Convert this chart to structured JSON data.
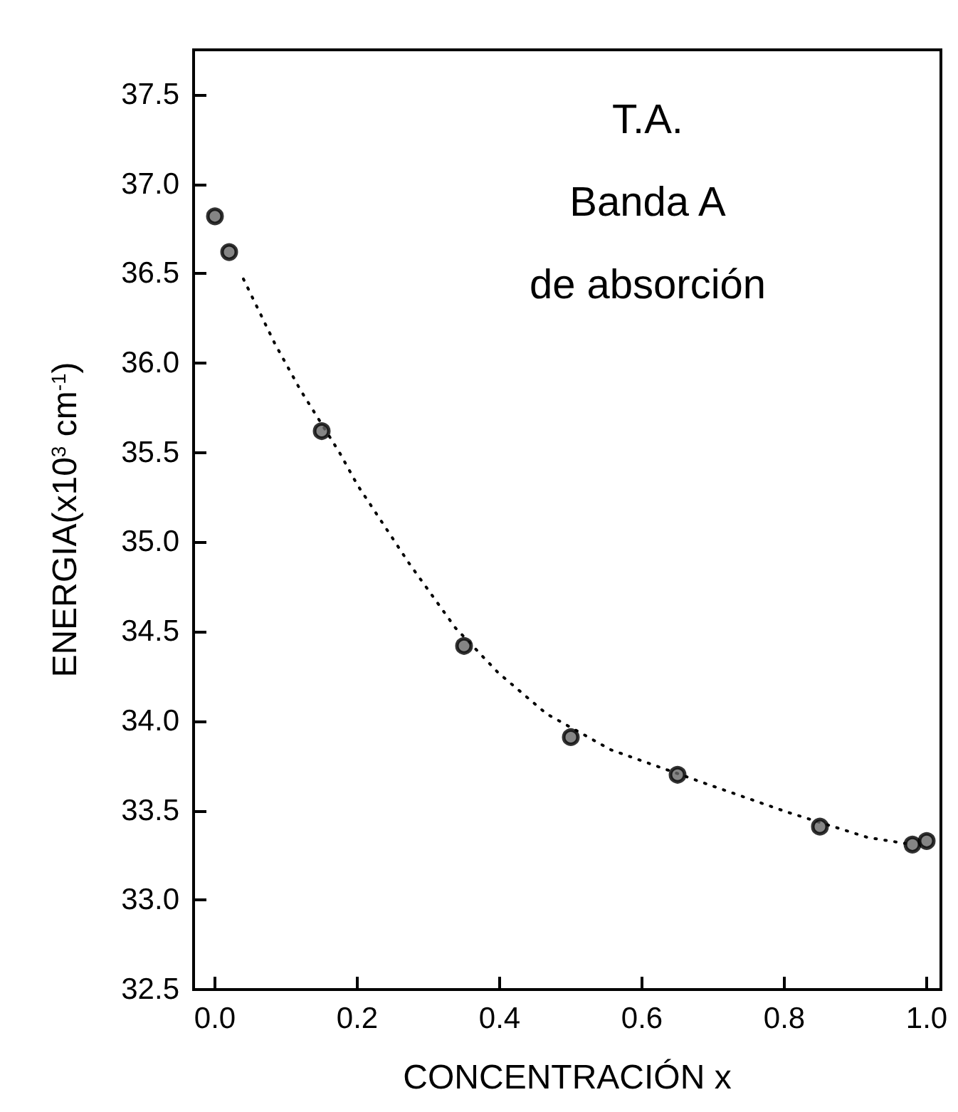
{
  "chart_data": {
    "type": "scatter",
    "xlabel": "CONCENTRACIÓN x",
    "ylabel": "ENERGIA(x10$^{3}$ cm$^{-1}$)",
    "annotations": [
      "T.A.",
      "Banda A",
      "de absorción"
    ],
    "series": [
      {
        "color": "#000000",
        "marker": "circle",
        "x": [
          0.0,
          0.02,
          0.15,
          0.35,
          0.5,
          0.65,
          0.85,
          0.98,
          1.0
        ],
        "values": [
          36.82,
          36.62,
          35.62,
          34.42,
          33.91,
          33.7,
          33.41,
          33.31,
          33.33
        ]
      },
      {
        "type": "line",
        "color": "#000000",
        "line_style": "dotted",
        "marker": "none",
        "x": [
          0.04,
          0.084,
          0.12,
          0.175,
          0.2,
          0.273,
          0.338,
          0.398,
          0.466,
          0.556,
          0.69,
          0.805,
          0.917,
          0.98
        ],
        "values": [
          36.47,
          36.11,
          35.85,
          35.5,
          35.32,
          34.88,
          34.52,
          34.27,
          34.04,
          33.84,
          33.65,
          33.49,
          33.35,
          33.31
        ]
      }
    ],
    "xlim": [
      -0.03,
      1.02
    ],
    "xticks": [
      {
        "value": 0,
        "label": "0.0"
      },
      0.2,
      0.4,
      0.6,
      0.8,
      {
        "value": 1,
        "label": "1.0"
      }
    ],
    "ylim": [
      32.5,
      37.75
    ],
    "yticks": [
      32.5,
      {
        "value": 33,
        "label": "33.0"
      },
      33.5,
      {
        "value": 34,
        "label": "34.0"
      },
      34.5,
      {
        "value": 35,
        "label": "35.0"
      },
      35.5,
      {
        "value": 36,
        "label": "36.0"
      },
      36.5,
      {
        "value": 37,
        "label": "37.0"
      },
      37.5
    ],
    "grid": false
  }
}
